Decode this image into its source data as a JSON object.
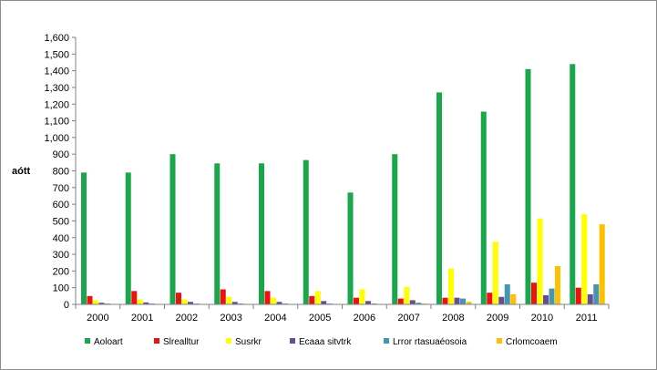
{
  "chart_data": {
    "type": "bar",
    "title": "",
    "xlabel": "",
    "ylabel": "aótt",
    "ylim": [
      0,
      1600
    ],
    "ytick_step": 100,
    "grid": false,
    "legend_position": "bottom",
    "categories": [
      "2000",
      "2001",
      "2002",
      "2003",
      "2004",
      "2005",
      "2006",
      "2007",
      "2008",
      "2009",
      "2010",
      "2011"
    ],
    "series": [
      {
        "name": "Aoloart",
        "color": "#1aa64a",
        "values": [
          790,
          790,
          900,
          845,
          845,
          865,
          670,
          900,
          1270,
          1155,
          1410,
          1440
        ]
      },
      {
        "name": "Slrealltur",
        "color": "#ee1111",
        "values": [
          50,
          80,
          70,
          90,
          80,
          50,
          40,
          35,
          40,
          70,
          130,
          100
        ]
      },
      {
        "name": "Susrkr",
        "color": "#ffff00",
        "values": [
          25,
          30,
          30,
          45,
          40,
          80,
          90,
          105,
          215,
          375,
          515,
          540
        ]
      },
      {
        "name": "Ecaaa sitvtrk",
        "color": "#6a4c93",
        "values": [
          10,
          12,
          15,
          15,
          15,
          20,
          20,
          25,
          40,
          45,
          55,
          60
        ]
      },
      {
        "name": "Lrror rtasuaéosoia",
        "color": "#4596b0",
        "values": [
          5,
          5,
          5,
          5,
          5,
          5,
          5,
          10,
          35,
          120,
          95,
          120
        ]
      },
      {
        "name": "Crlomcoaem",
        "color": "#ffc000",
        "values": [
          2,
          2,
          2,
          2,
          2,
          2,
          2,
          5,
          15,
          60,
          230,
          480
        ]
      }
    ]
  }
}
